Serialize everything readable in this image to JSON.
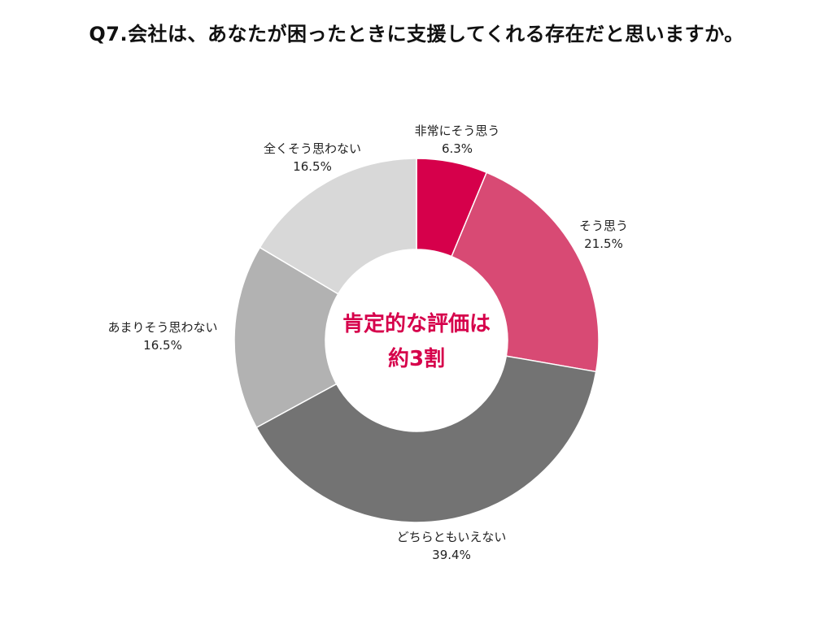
{
  "chart_data": {
    "type": "pie",
    "title": "Q7.会社は、あなたが困ったときに支援してくれる存在だと思いますか。",
    "center_text": [
      "肯定的な評価は",
      "約3割"
    ],
    "center_text_color": "#d6004b",
    "slices": [
      {
        "label": "非常にそう思う",
        "value": 6.3,
        "value_label": "6.3%",
        "color": "#d6004b"
      },
      {
        "label": "そう思う",
        "value": 21.5,
        "value_label": "21.5%",
        "color": "#d84a74"
      },
      {
        "label": "どちらともいえない",
        "value": 39.4,
        "value_label": "39.4%",
        "color": "#737373"
      },
      {
        "label": "あまりそう思わない",
        "value": 16.5,
        "value_label": "16.5%",
        "color": "#b2b2b2"
      },
      {
        "label": "全くそう思わない",
        "value": 16.5,
        "value_label": "16.5%",
        "color": "#d8d8d8"
      }
    ],
    "donut": true,
    "start_angle": "top",
    "direction": "clockwise"
  }
}
